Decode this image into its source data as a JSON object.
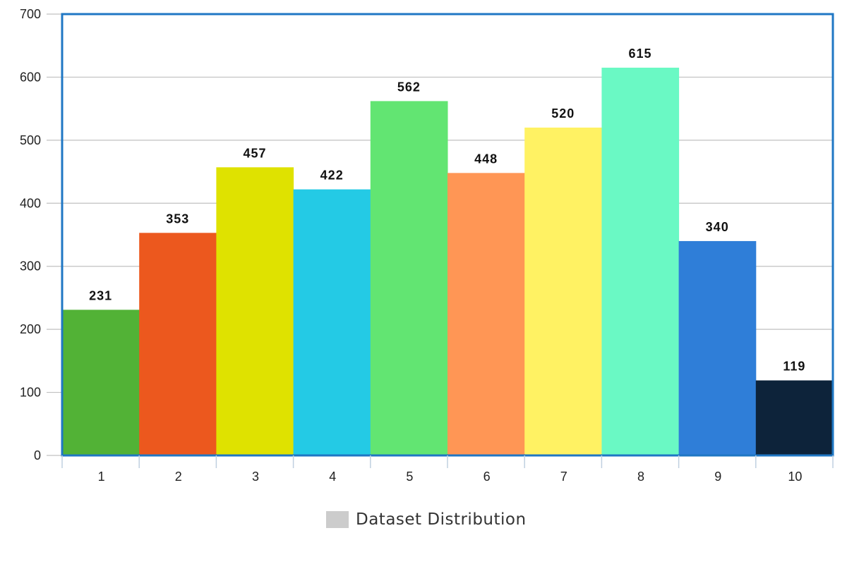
{
  "chart_data": {
    "type": "bar",
    "categories": [
      "1",
      "2",
      "3",
      "4",
      "5",
      "6",
      "7",
      "8",
      "9",
      "10"
    ],
    "series": [
      {
        "name": "Dataset Distribution",
        "values": [
          231,
          353,
          457,
          422,
          562,
          448,
          520,
          615,
          340,
          119
        ]
      }
    ],
    "bar_colors": [
      "#52b236",
      "#ec581e",
      "#dfe200",
      "#24cae5",
      "#62e572",
      "#ff9655",
      "#fff263",
      "#6af9c4",
      "#2f7ed8",
      "#0d233a"
    ],
    "y_ticks": [
      "0",
      "100",
      "200",
      "300",
      "400",
      "500",
      "600",
      "700"
    ],
    "ylim": [
      0,
      700
    ],
    "grid": true,
    "plot_border_color": "#1f77c4",
    "legend": {
      "position": "bottom-center",
      "label": "Dataset Distribution",
      "swatch_color": "#cccccc"
    }
  }
}
